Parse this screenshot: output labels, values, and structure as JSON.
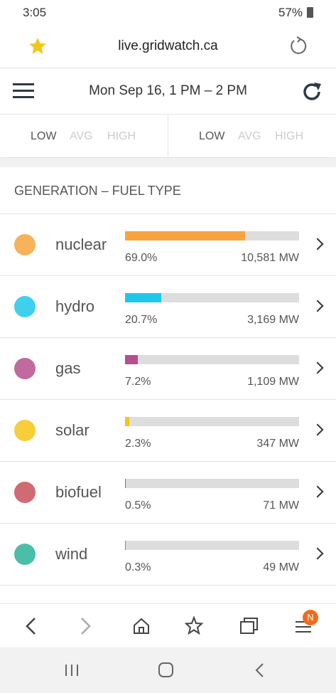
{
  "status_bar": {
    "time": "3:05",
    "battery": "57%"
  },
  "browser": {
    "url": "live.gridwatch.ca"
  },
  "header": {
    "period": "Mon Sep 16, 1 PM – 2 PM"
  },
  "stats": {
    "left": [
      "LOW",
      "AVG",
      "HIGH"
    ],
    "right": [
      "LOW",
      "AVG",
      "HIGH"
    ]
  },
  "generation": {
    "title": "GENERATION – FUEL TYPE",
    "rows": [
      {
        "name": "nuclear",
        "percent": 69.0,
        "percent_label": "69.0%",
        "mw_label": "10,581 MW",
        "color": "#f7a440"
      },
      {
        "name": "hydro",
        "percent": 20.7,
        "percent_label": "20.7%",
        "mw_label": "3,169 MW",
        "color": "#1fc8ea"
      },
      {
        "name": "gas",
        "percent": 7.2,
        "percent_label": "7.2%",
        "mw_label": "1,109 MW",
        "color": "#b5508f"
      },
      {
        "name": "solar",
        "percent": 2.3,
        "percent_label": "2.3%",
        "mw_label": "347 MW",
        "color": "#f5c518"
      },
      {
        "name": "biofuel",
        "percent": 0.5,
        "percent_label": "0.5%",
        "mw_label": "71 MW",
        "color": "#c8505a"
      },
      {
        "name": "wind",
        "percent": 0.3,
        "percent_label": "0.3%",
        "mw_label": "49 MW",
        "color": "#2bb39a"
      }
    ]
  },
  "nav": {
    "badge": "N"
  }
}
